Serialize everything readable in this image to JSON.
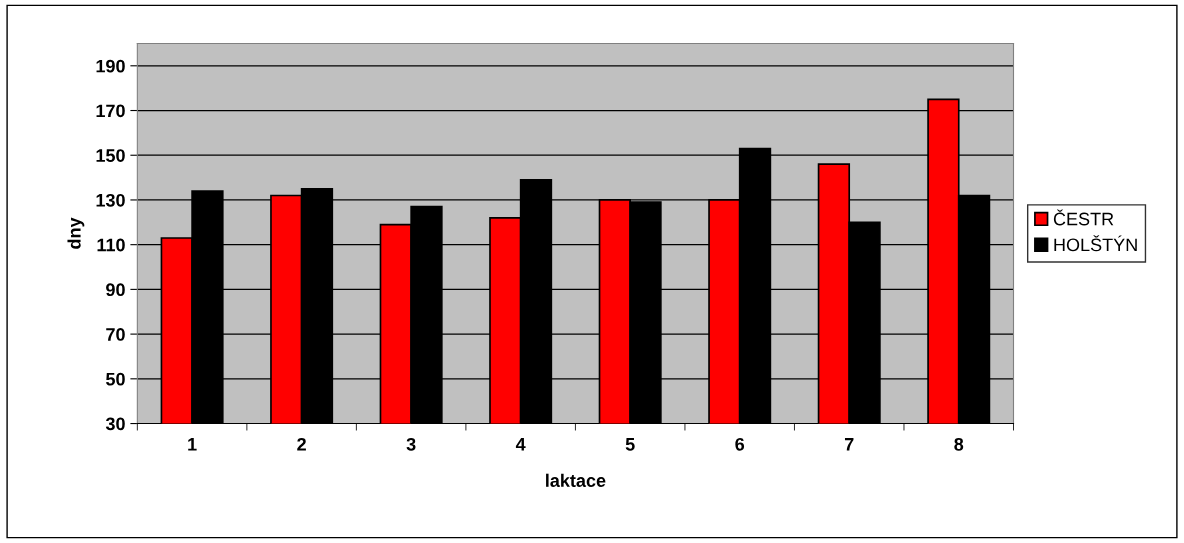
{
  "chart_data": {
    "type": "bar",
    "xlabel": "laktace",
    "ylabel": "dny",
    "categories": [
      "1",
      "2",
      "3",
      "4",
      "5",
      "6",
      "7",
      "8"
    ],
    "series": [
      {
        "name": "ČESTR",
        "color": "#ff0000",
        "values": [
          113,
          132,
          119,
          122,
          130,
          130,
          146,
          175
        ]
      },
      {
        "name": "HOLŠTÝN",
        "color": "#000000",
        "values": [
          134,
          135,
          127,
          139,
          129,
          153,
          120,
          132
        ]
      }
    ],
    "ylim": [
      30,
      200
    ],
    "yticks": [
      30,
      50,
      70,
      90,
      110,
      130,
      150,
      170,
      190
    ],
    "grid": "y",
    "legend": "right"
  }
}
